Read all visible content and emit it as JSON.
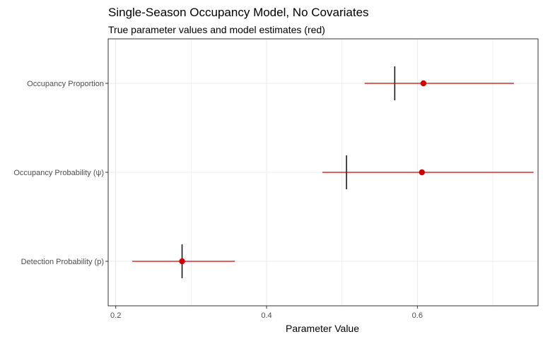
{
  "chart_data": {
    "type": "scatter",
    "title": "Single-Season Occupancy Model, No Covariates",
    "subtitle": "True parameter values and model estimates (red)",
    "xlabel": "Parameter Value",
    "ylabel": "",
    "xlim": [
      0.19,
      0.76
    ],
    "x_ticks": [
      0.2,
      0.4,
      0.6
    ],
    "x_tick_labels": [
      "0.2",
      "0.4",
      "0.6"
    ],
    "categories": [
      "Occupancy Proportion",
      "Occupancy Probability (ψ)",
      "Detection Probability (p)"
    ],
    "grid": true,
    "series": [
      {
        "values": [
          0.57,
          0.506,
          0.288
        ]
      },
      {
        "values": [
          0.608,
          0.606,
          0.288
        ],
        "lower": [
          0.53,
          0.474,
          0.222
        ],
        "upper": [
          0.728,
          0.754,
          0.358
        ]
      }
    ],
    "colors": {
      "estimate": "#cc0000",
      "truth": "#1a1a1a",
      "grid": "#ebebeb",
      "panel_border": "#333333"
    }
  }
}
